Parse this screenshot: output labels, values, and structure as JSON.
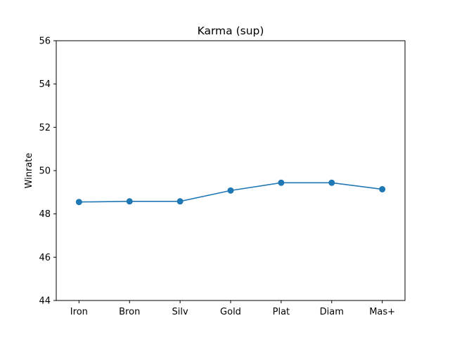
{
  "chart_data": {
    "type": "line",
    "title": "Karma (sup)",
    "xlabel": "",
    "ylabel": "Winrate",
    "categories": [
      "Iron",
      "Bron",
      "Silv",
      "Gold",
      "Plat",
      "Diam",
      "Mas+"
    ],
    "series": [
      {
        "values": [
          48.55,
          48.58,
          48.58,
          49.08,
          49.44,
          49.44,
          49.14
        ],
        "color": "#1f77b4",
        "marker": "circle"
      }
    ],
    "ylim": [
      44,
      56
    ],
    "yticks": [
      44,
      46,
      48,
      50,
      52,
      54,
      56
    ],
    "grid": false,
    "legend": "none"
  }
}
